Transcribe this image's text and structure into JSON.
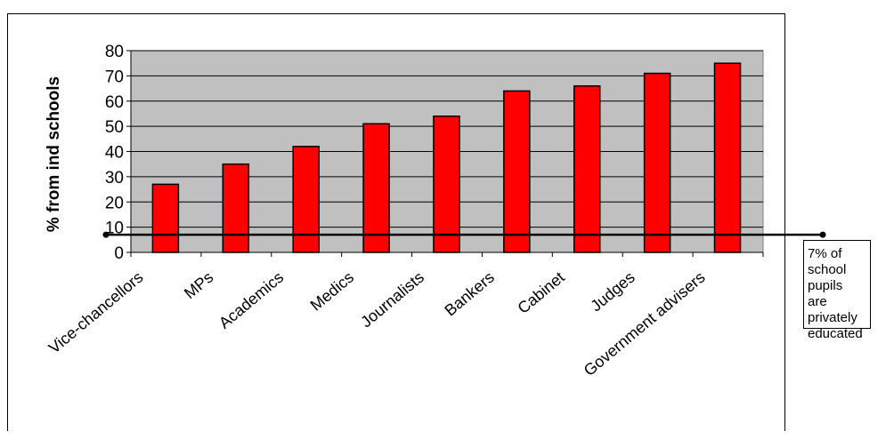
{
  "chart_data": {
    "type": "bar",
    "categories": [
      "Vice-chancellors",
      "MPs",
      "Academics",
      "Medics",
      "Journalists",
      "Bankers",
      "Cabinet",
      "Judges",
      "Government advisers"
    ],
    "values": [
      27,
      35,
      42,
      51,
      54,
      64,
      66,
      71,
      75
    ],
    "xlabel": "",
    "ylabel": "% from ind schools",
    "ylim": [
      0,
      80
    ],
    "yticks": [
      0,
      10,
      20,
      30,
      40,
      50,
      60,
      70,
      80
    ],
    "reference_line": {
      "value": 7
    },
    "annotation": [
      "7% of",
      "school",
      "pupils",
      "are",
      "privately",
      "educated"
    ],
    "bar_color": "#ff0000",
    "plot_background": "#c0c0c0",
    "grid": true,
    "legend": "none"
  }
}
